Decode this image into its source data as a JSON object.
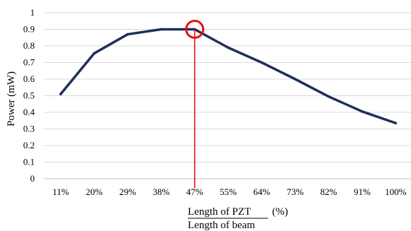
{
  "chart_data": {
    "type": "line",
    "title": "",
    "ylabel": "Power (mW)",
    "xlabel": {
      "prefix": "Length of PZT",
      "unit": "(%)",
      "denominator": "Length of beam"
    },
    "categories": [
      "11%",
      "20%",
      "29%",
      "38%",
      "47%",
      "55%",
      "64%",
      "73%",
      "82%",
      "91%",
      "100%"
    ],
    "series": [
      {
        "values": [
          0.51,
          0.755,
          0.87,
          0.9,
          0.9,
          0.79,
          0.7,
          0.6,
          0.495,
          0.405,
          0.335
        ]
      }
    ],
    "ylim": [
      0,
      1
    ],
    "yticks": [
      "0",
      "0.1",
      "0.2",
      "0.3",
      "0.4",
      "0.5",
      "0.6",
      "0.7",
      "0.8",
      "0.9",
      "1"
    ],
    "grid": true,
    "highlight_category_index": 4,
    "colors": {
      "series": "#1f2f5a",
      "gridline": "#d9d9d9",
      "highlight": "#e81010"
    }
  }
}
